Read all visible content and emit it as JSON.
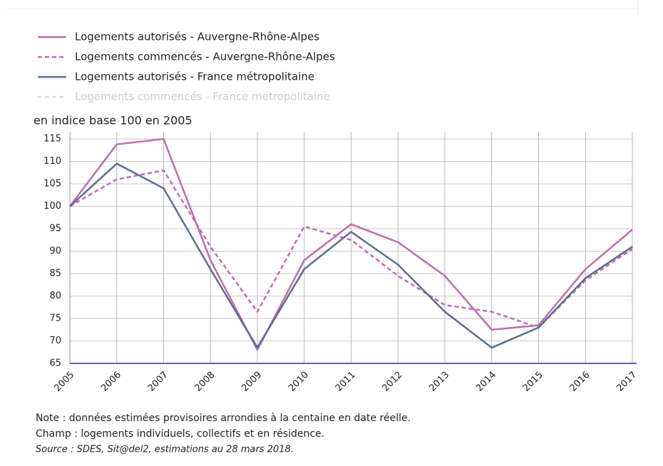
{
  "chart_data": {
    "type": "line",
    "y_axis_label": "en indice base 100 en 2005",
    "categories": [
      "2005",
      "2006",
      "2007",
      "2008",
      "2009",
      "2010",
      "2011",
      "2012",
      "2013",
      "2014",
      "2015",
      "2016",
      "2017"
    ],
    "series": [
      {
        "name": "Logements autorisés - Auvergne-Rhône-Alpes",
        "color": "#c46bae",
        "dashed": false,
        "visible": true,
        "values": [
          100,
          113.8,
          115,
          88,
          68,
          88,
          96,
          92,
          84.5,
          72.5,
          73.5,
          86,
          94.8
        ]
      },
      {
        "name": "Logements commencés - Auvergne-Rhône-Alpes",
        "color": "#c46bae",
        "dashed": true,
        "visible": true,
        "values": [
          100,
          106,
          108,
          91,
          76.5,
          95.5,
          92.5,
          84.5,
          78,
          76.5,
          73,
          83.5,
          90.5
        ]
      },
      {
        "name": "Logements autorisés - France métropolitaine",
        "color": "#5b6d93",
        "dashed": false,
        "visible": true,
        "values": [
          100,
          109.5,
          104,
          86,
          68.5,
          86,
          94.3,
          87,
          76.5,
          68.5,
          73,
          84,
          91
        ]
      },
      {
        "name": "Logements commencés - France métropolitaine",
        "color": "#5b6d93",
        "dashed": true,
        "visible": false,
        "values": [
          null,
          null,
          null,
          null,
          null,
          null,
          null,
          null,
          null,
          null,
          null,
          null,
          null
        ]
      }
    ],
    "ylim": [
      65,
      115
    ],
    "yticks": [
      65,
      70,
      75,
      80,
      85,
      90,
      95,
      100,
      105,
      110,
      115
    ],
    "grid": true,
    "notes": [
      "Note : données estimées provisoires arrondies à la centaine en date réelle.",
      "Champ : logements individuels, collectifs et en résidence."
    ],
    "source": "Source : SDES, Sit@del2, estimations au 28 mars 2018."
  }
}
